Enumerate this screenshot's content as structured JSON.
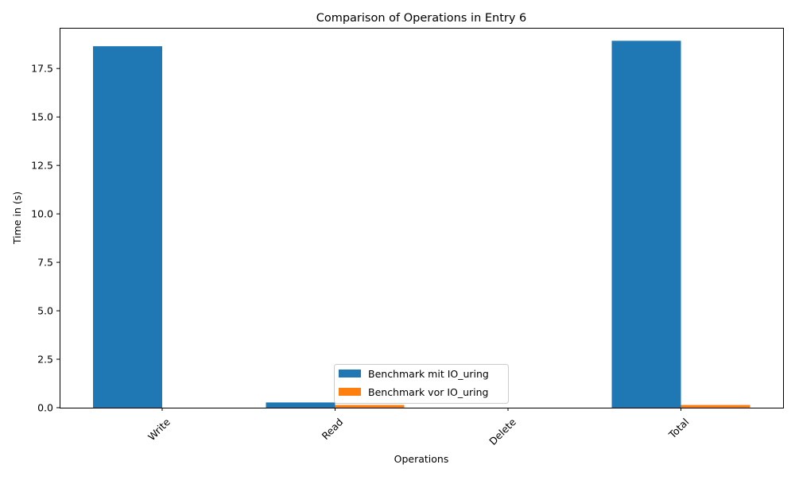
{
  "chart_data": {
    "type": "bar",
    "title": "Comparison of Operations in Entry 6",
    "xlabel": "Operations",
    "ylabel": "Time in (s)",
    "categories": [
      "Write",
      "Read",
      "Delete",
      "Total"
    ],
    "series": [
      {
        "name": "Benchmark mit IO_uring",
        "color": "#1f77b4",
        "values": [
          18.65,
          0.27,
          0.0,
          18.93
        ]
      },
      {
        "name": "Benchmark vor IO_uring",
        "color": "#ff7f0e",
        "values": [
          0.0,
          0.14,
          0.0,
          0.14
        ]
      }
    ],
    "ylim": [
      0,
      19.6
    ],
    "yticks": [
      0.0,
      2.5,
      5.0,
      7.5,
      10.0,
      12.5,
      15.0,
      17.5
    ],
    "ytick_labels": [
      "0.0",
      "2.5",
      "5.0",
      "7.5",
      "10.0",
      "12.5",
      "15.0",
      "17.5"
    ],
    "grid": false,
    "legend_position": "lower-center"
  }
}
